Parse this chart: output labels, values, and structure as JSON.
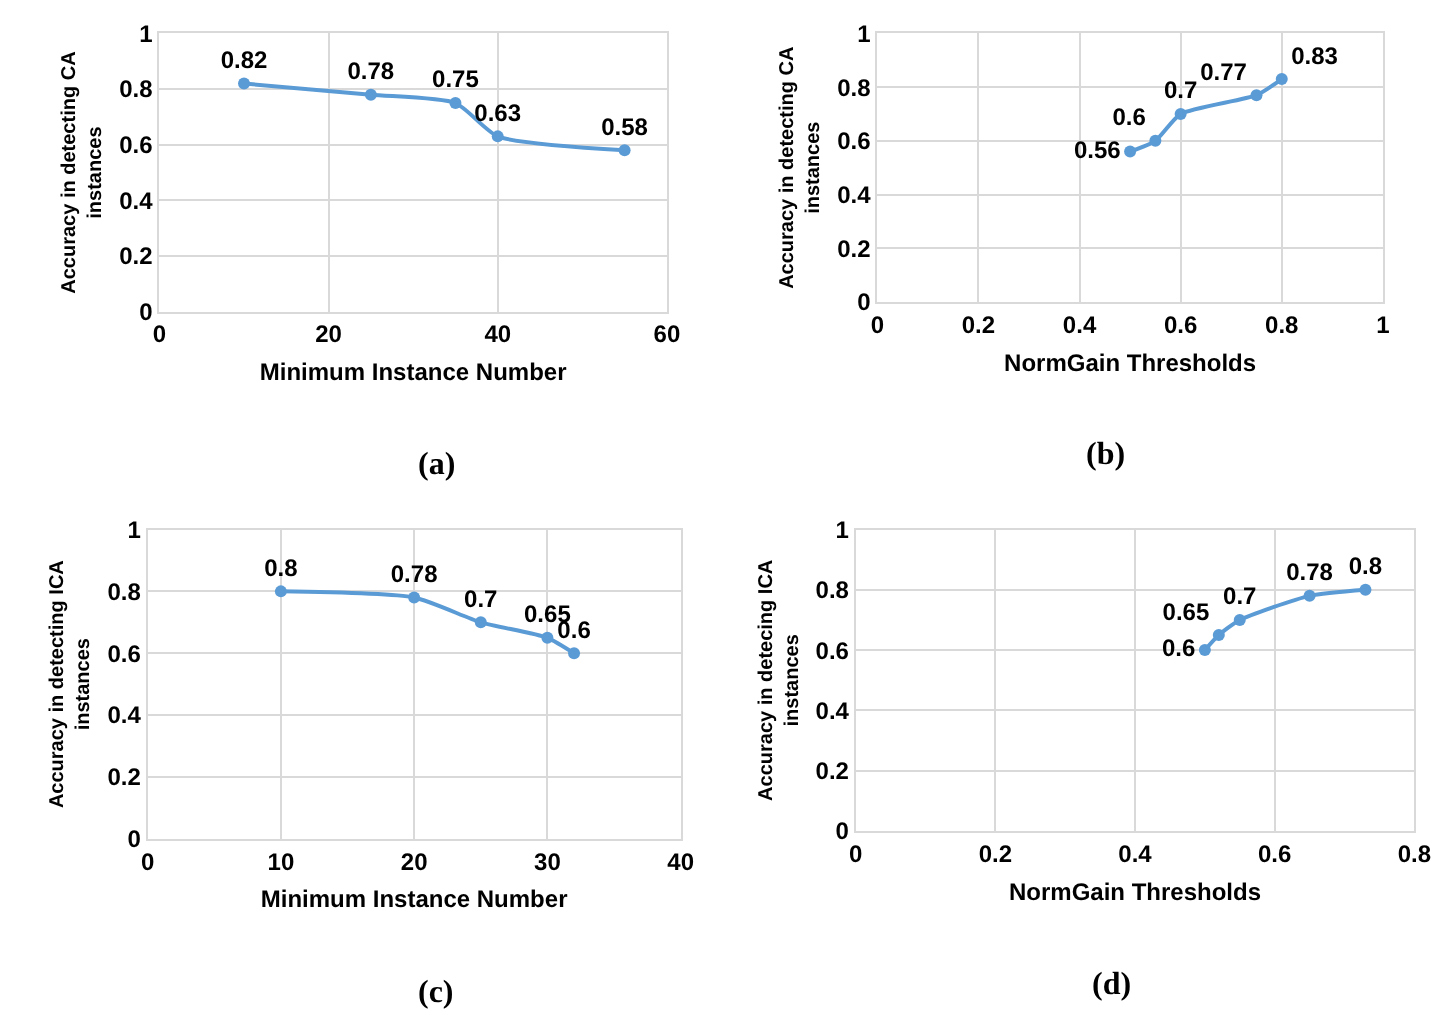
{
  "chart_data": [
    {
      "type": "line",
      "xlabel": "Minimum Instance Number",
      "ylabel": "Accuracy in detecting CA instances",
      "annotations": [
        "(a)"
      ],
      "x": [
        10,
        25,
        35,
        40,
        55
      ],
      "series": [
        {
          "color": "#5b9bd5",
          "values": [
            0.82,
            0.78,
            0.75,
            0.63,
            0.58
          ]
        }
      ],
      "xlim": [
        0,
        60
      ],
      "xticks": [
        0,
        20,
        40,
        60
      ],
      "ylim": [
        0,
        1
      ],
      "yticks": [
        0,
        0.2,
        0.4,
        0.6,
        0.8,
        1
      ],
      "grid": true,
      "marker": "circle",
      "data_labels": true
    },
    {
      "type": "line",
      "xlabel": "NormGain Thresholds",
      "ylabel": "Accuracy in detecting CA instances",
      "annotations": [
        "(b)"
      ],
      "x": [
        0.5,
        0.55,
        0.6,
        0.75,
        0.8
      ],
      "series": [
        {
          "color": "#5b9bd5",
          "values": [
            0.56,
            0.6,
            0.7,
            0.77,
            0.83
          ]
        }
      ],
      "xlim": [
        0,
        1
      ],
      "xticks": [
        0,
        0.2,
        0.4,
        0.6,
        0.8,
        1
      ],
      "ylim": [
        0,
        1
      ],
      "yticks": [
        0,
        0.2,
        0.4,
        0.6,
        0.8,
        1
      ],
      "grid": true,
      "marker": "circle",
      "data_labels": true
    },
    {
      "type": "line",
      "xlabel": "Minimum Instance Number",
      "ylabel": "Accuracy in detecting ICA instances",
      "annotations": [
        "(c)"
      ],
      "x": [
        10,
        20,
        25,
        30,
        32
      ],
      "series": [
        {
          "color": "#5b9bd5",
          "values": [
            0.8,
            0.78,
            0.7,
            0.65,
            0.6
          ]
        }
      ],
      "xlim": [
        0,
        40
      ],
      "xticks": [
        0,
        10,
        20,
        30,
        40
      ],
      "ylim": [
        0,
        1
      ],
      "yticks": [
        0,
        0.2,
        0.4,
        0.6,
        0.8,
        1
      ],
      "grid": true,
      "marker": "circle",
      "data_labels": true
    },
    {
      "type": "line",
      "xlabel": "NormGain Thresholds",
      "ylabel": "Accuracy in detecing ICA instances",
      "annotations": [
        "(d)"
      ],
      "x": [
        0.5,
        0.52,
        0.55,
        0.65,
        0.73
      ],
      "series": [
        {
          "color": "#5b9bd5",
          "values": [
            0.6,
            0.65,
            0.7,
            0.78,
            0.8
          ]
        }
      ],
      "xlim": [
        0,
        0.8
      ],
      "xticks": [
        0,
        0.2,
        0.4,
        0.6,
        0.8
      ],
      "ylim": [
        0,
        1
      ],
      "yticks": [
        0,
        0.2,
        0.4,
        0.6,
        0.8,
        1
      ],
      "grid": true,
      "marker": "circle",
      "data_labels": true
    }
  ]
}
